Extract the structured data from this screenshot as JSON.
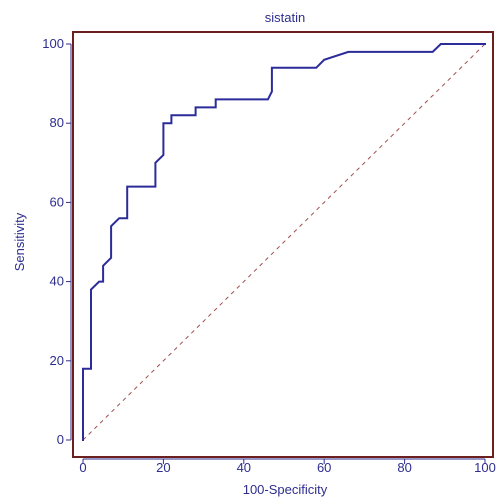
{
  "chart_data": {
    "type": "line",
    "title": "sistatin",
    "xlabel": "100-Specificity",
    "ylabel": "Sensitivity",
    "xlim": [
      0,
      100
    ],
    "ylim": [
      0,
      100
    ],
    "xticks": [
      0,
      20,
      40,
      60,
      80,
      100
    ],
    "yticks": [
      0,
      20,
      40,
      60,
      80,
      100
    ],
    "x_tick_labels": [
      "0",
      "20",
      "40",
      "60",
      "80",
      "100"
    ],
    "y_tick_labels": [
      "0",
      "20",
      "40",
      "60",
      "80",
      "100"
    ],
    "grid": false,
    "series": [
      {
        "line_style": "solid",
        "color": "#2b2b9a",
        "x": [
          0,
          0,
          2,
          2,
          4,
          5,
          5,
          7,
          7,
          9,
          9,
          11,
          11,
          18,
          18,
          20,
          20,
          22,
          22,
          24,
          28,
          28,
          33,
          33,
          46,
          47,
          47,
          58,
          60,
          66,
          87,
          89,
          100
        ],
        "y": [
          0,
          18,
          18,
          38,
          40,
          40,
          44,
          46,
          54,
          56,
          56,
          56,
          64,
          64,
          70,
          72,
          80,
          80,
          82,
          82,
          82,
          84,
          84,
          86,
          86,
          88,
          94,
          94,
          96,
          98,
          98,
          100,
          100
        ]
      },
      {
        "line_style": "dashed",
        "color": "#a05050",
        "x": [
          0,
          100
        ],
        "y": [
          0,
          100
        ]
      }
    ],
    "colors": {
      "text": "#2e2e8f",
      "frame": "#6b1f1f",
      "axis": "#2e2e8f"
    }
  }
}
